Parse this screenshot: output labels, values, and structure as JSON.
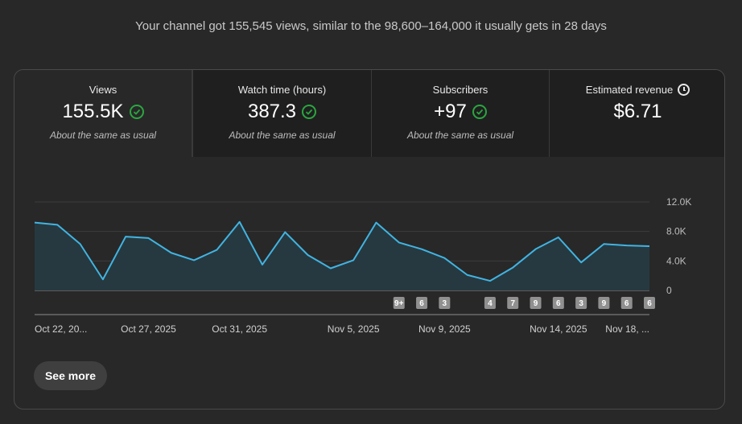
{
  "summary": "Your channel got 155,545 views, similar to the 98,600–164,000 it usually gets in 28 days",
  "tabs": [
    {
      "title": "Views",
      "value": "155.5K",
      "note": "About the same as usual",
      "status": "check"
    },
    {
      "title": "Watch time (hours)",
      "value": "387.3",
      "note": "About the same as usual",
      "status": "check"
    },
    {
      "title": "Subscribers",
      "value": "+97",
      "note": "About the same as usual",
      "status": "check"
    },
    {
      "title": "Estimated revenue",
      "value": "$6.71",
      "note": "",
      "status": "none",
      "title_icon": "clock-icon"
    }
  ],
  "chart_data": {
    "type": "area",
    "series": [
      {
        "values": [
          9200,
          8900,
          6300,
          1500,
          7300,
          7100,
          5100,
          4100,
          5500,
          9300,
          3500,
          7900,
          4800,
          3000,
          4100,
          9200,
          6500,
          5600,
          4400,
          2100,
          1300,
          3100,
          5600,
          7200,
          3800,
          6300,
          6100,
          6000
        ]
      }
    ],
    "ylim": [
      0,
      12000
    ],
    "y_ticks": [
      "12.0K",
      "8.0K",
      "4.0K",
      "0"
    ],
    "x_tick_labels": [
      "Oct 22, 20...",
      "Oct 27, 2025",
      "Oct 31, 2025",
      "Nov 5, 2025",
      "Nov 9, 2025",
      "Nov 14, 2025",
      "Nov 18, ..."
    ],
    "x_tick_index": [
      0,
      5,
      9,
      14,
      18,
      23,
      27
    ],
    "upload_markers": [
      {
        "index": 16,
        "label": "9+"
      },
      {
        "index": 17,
        "label": "6"
      },
      {
        "index": 18,
        "label": "3"
      },
      {
        "index": 20,
        "label": "4"
      },
      {
        "index": 21,
        "label": "7"
      },
      {
        "index": 22,
        "label": "9"
      },
      {
        "index": 23,
        "label": "6"
      },
      {
        "index": 24,
        "label": "3"
      },
      {
        "index": 25,
        "label": "9"
      },
      {
        "index": 26,
        "label": "6"
      },
      {
        "index": 27,
        "label": "6"
      }
    ],
    "grid": true,
    "line_color": "#41b4e2",
    "fill_color": "#263940"
  },
  "colors": {
    "check": "#2ba640",
    "marker_bg": "#909090"
  },
  "buttons": {
    "see_more": "See more"
  }
}
